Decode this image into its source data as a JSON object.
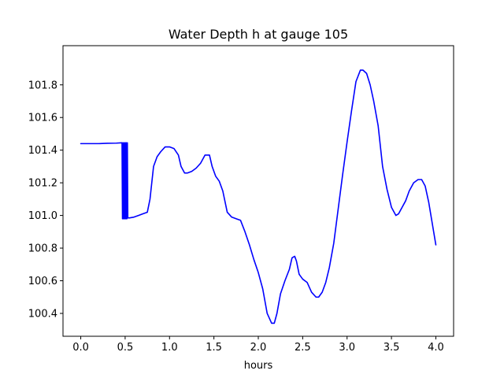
{
  "chart_data": {
    "type": "line",
    "title": "Water Depth h at gauge 105",
    "xlabel": "hours",
    "ylabel": "",
    "xlim": [
      -0.2,
      4.2
    ],
    "ylim": [
      100.26,
      102.04
    ],
    "grid": false,
    "xticks": [
      0.0,
      0.5,
      1.0,
      1.5,
      2.0,
      2.5,
      3.0,
      3.5,
      4.0
    ],
    "xtick_labels": [
      "0.0",
      "0.5",
      "1.0",
      "1.5",
      "2.0",
      "2.5",
      "3.0",
      "3.5",
      "4.0"
    ],
    "yticks": [
      100.4,
      100.6,
      100.8,
      101.0,
      101.2,
      101.4,
      101.6,
      101.8
    ],
    "ytick_labels": [
      "100.4",
      "100.6",
      "100.8",
      "101.0",
      "101.2",
      "101.4",
      "101.6",
      "101.8"
    ],
    "series": [
      {
        "color": "#0000ff",
        "x": [
          0.0,
          0.1,
          0.2,
          0.3,
          0.4,
          0.465,
          0.47,
          0.475,
          0.48,
          0.485,
          0.49,
          0.495,
          0.5,
          0.505,
          0.51,
          0.515,
          0.52,
          0.525,
          0.53,
          0.55,
          0.6,
          0.65,
          0.7,
          0.75,
          0.78,
          0.82,
          0.86,
          0.9,
          0.95,
          1.0,
          1.05,
          1.1,
          1.13,
          1.17,
          1.2,
          1.25,
          1.3,
          1.35,
          1.4,
          1.45,
          1.48,
          1.52,
          1.56,
          1.6,
          1.65,
          1.7,
          1.75,
          1.8,
          1.85,
          1.9,
          1.95,
          2.0,
          2.05,
          2.1,
          2.15,
          2.18,
          2.21,
          2.25,
          2.3,
          2.35,
          2.38,
          2.41,
          2.43,
          2.46,
          2.5,
          2.55,
          2.6,
          2.65,
          2.68,
          2.72,
          2.76,
          2.8,
          2.85,
          2.9,
          2.95,
          3.0,
          3.05,
          3.1,
          3.15,
          3.18,
          3.22,
          3.26,
          3.3,
          3.35,
          3.4,
          3.45,
          3.5,
          3.55,
          3.58,
          3.62,
          3.66,
          3.7,
          3.75,
          3.8,
          3.84,
          3.88,
          3.92,
          3.96,
          4.0
        ],
        "y": [
          101.44,
          101.44,
          101.44,
          101.442,
          101.443,
          101.445,
          100.98,
          101.445,
          100.98,
          101.445,
          100.98,
          101.445,
          100.98,
          101.445,
          100.98,
          101.445,
          100.98,
          101.445,
          100.985,
          100.985,
          100.99,
          101.0,
          101.01,
          101.02,
          101.1,
          101.3,
          101.36,
          101.39,
          101.42,
          101.42,
          101.41,
          101.37,
          101.3,
          101.26,
          101.26,
          101.27,
          101.29,
          101.32,
          101.37,
          101.37,
          101.3,
          101.24,
          101.21,
          101.15,
          101.02,
          100.99,
          100.98,
          100.97,
          100.9,
          100.82,
          100.73,
          100.65,
          100.55,
          100.4,
          100.34,
          100.34,
          100.4,
          100.52,
          100.6,
          100.67,
          100.74,
          100.75,
          100.72,
          100.64,
          100.61,
          100.59,
          100.53,
          100.5,
          100.5,
          100.53,
          100.59,
          100.68,
          100.83,
          101.04,
          101.25,
          101.45,
          101.64,
          101.82,
          101.89,
          101.89,
          101.87,
          101.8,
          101.7,
          101.55,
          101.3,
          101.16,
          101.05,
          101.0,
          101.01,
          101.05,
          101.09,
          101.15,
          101.2,
          101.22,
          101.22,
          101.18,
          101.08,
          100.95,
          100.82
        ]
      }
    ]
  }
}
